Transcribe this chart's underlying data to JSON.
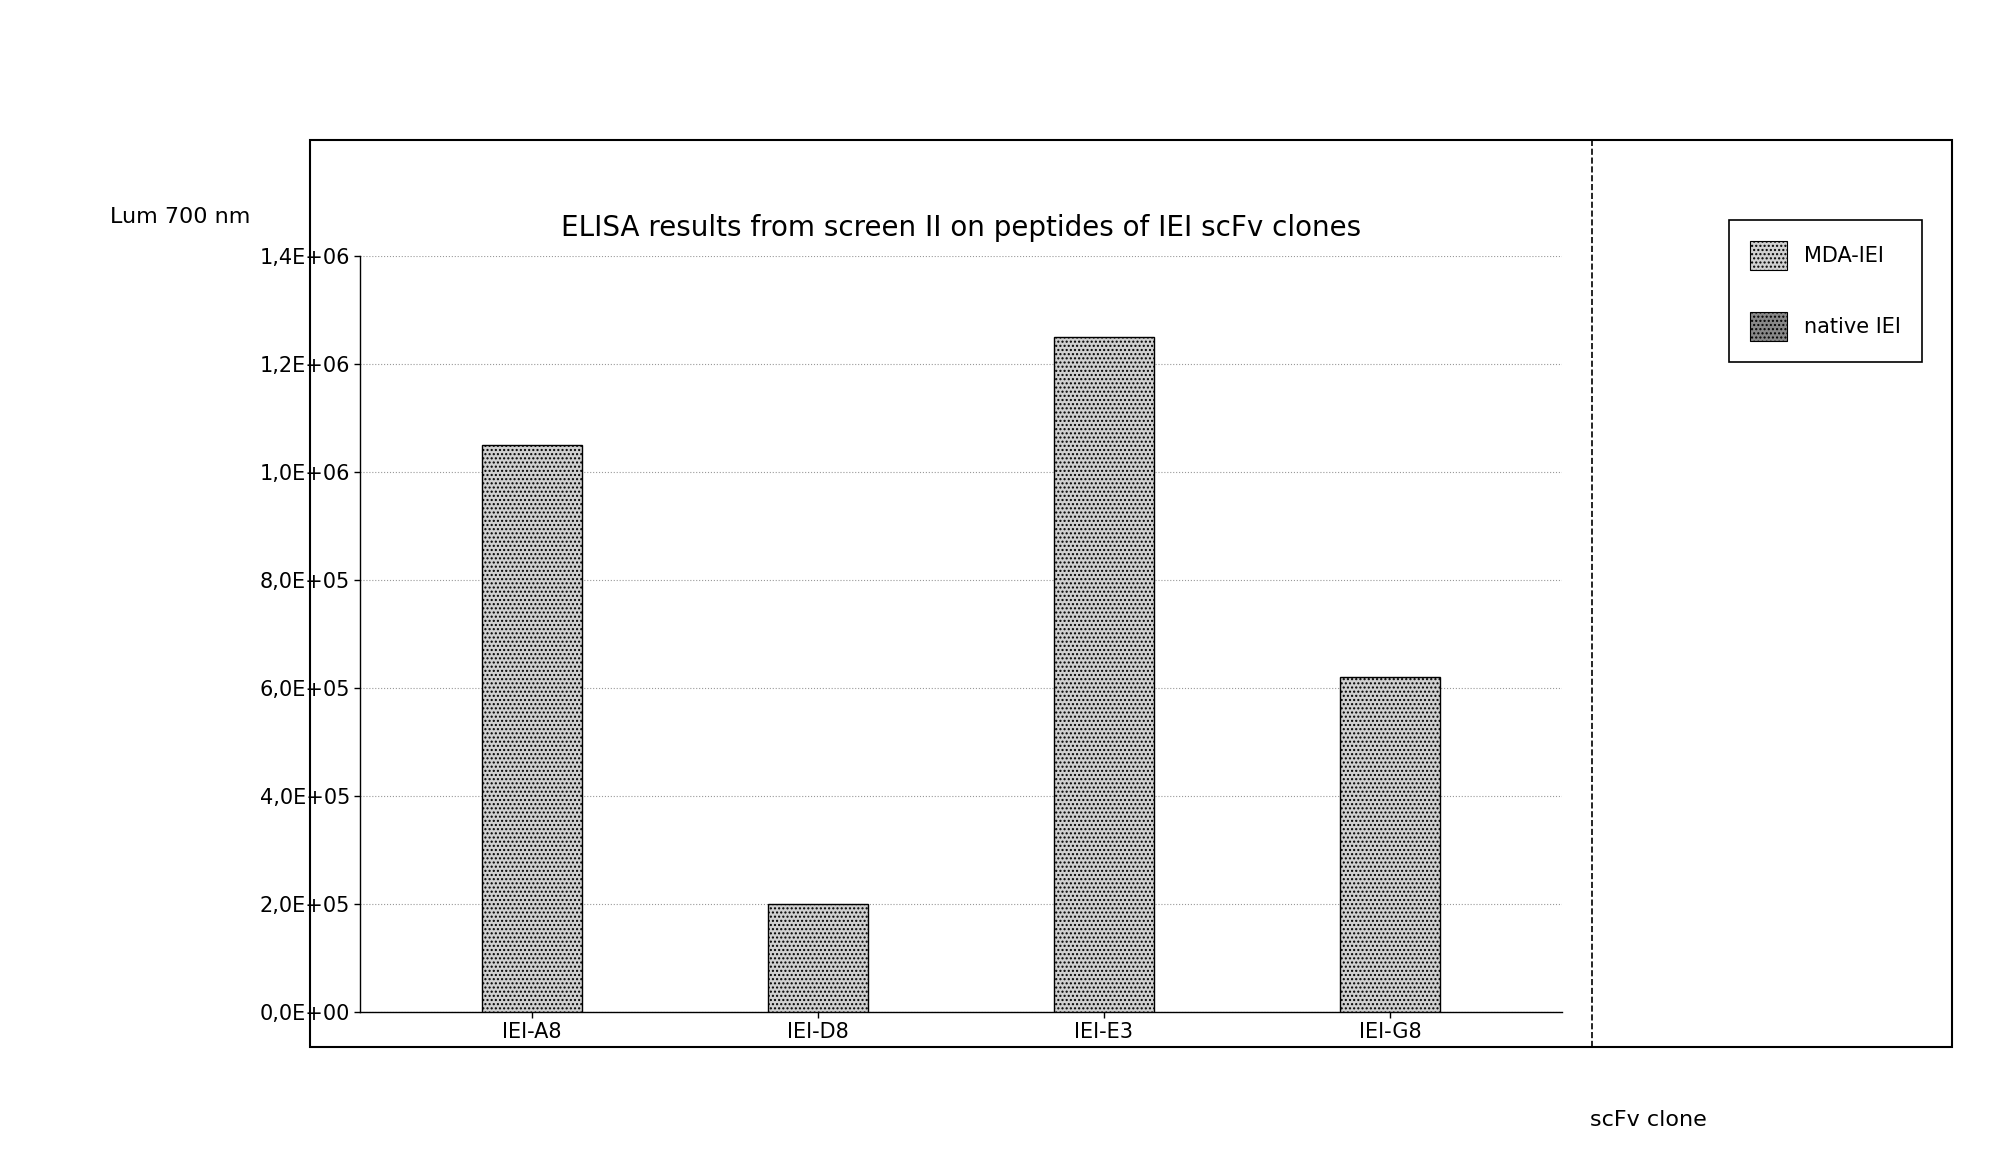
{
  "title": "ELISA results from screen II on peptides of IEI scFv clones",
  "ylabel": "Lum 700 nm",
  "xlabel": "scFv clone",
  "categories": [
    "IEI-A8",
    "IEI-D8",
    "IEI-E3",
    "IEI-G8"
  ],
  "mda_iei_values": [
    1050000,
    200000,
    1250000,
    620000
  ],
  "ylim": [
    0,
    1400000
  ],
  "yticks": [
    0,
    200000,
    400000,
    600000,
    800000,
    1000000,
    1200000,
    1400000
  ],
  "ytick_labels": [
    "0,0E+00",
    "2,0E+05",
    "4,0E+05",
    "6,0E+05",
    "8,0E+05",
    "1,0E+06",
    "1,2E+06",
    "1,4E+06"
  ],
  "bar_color": "#d0d0d0",
  "bar_edgecolor": "#000000",
  "legend_labels": [
    "MDA-IEI",
    "native IEI"
  ],
  "title_fontsize": 20,
  "axis_label_fontsize": 16,
  "tick_fontsize": 15,
  "legend_fontsize": 15,
  "bar_width": 0.35,
  "fig_width": 20.02,
  "fig_height": 11.63,
  "dpi": 100,
  "background_color": "#ffffff",
  "grid_color": "#999999",
  "border_color": "#000000"
}
